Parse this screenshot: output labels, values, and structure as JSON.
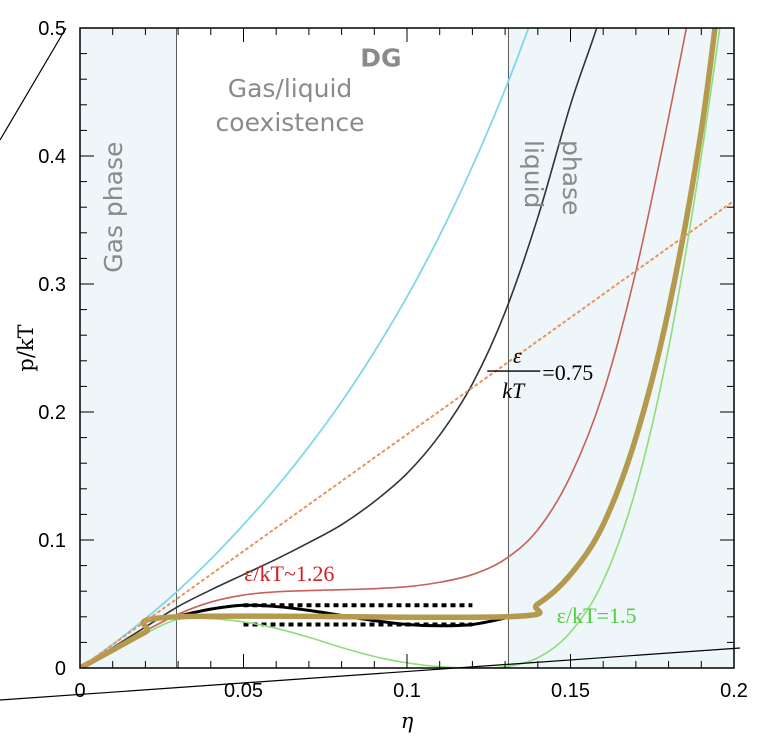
{
  "chart_data": {
    "type": "line",
    "xlabel": "η",
    "ylabel": "p/kT",
    "xlim": [
      0,
      0.2
    ],
    "ylim": [
      0,
      0.5
    ],
    "xticks": [
      {
        "value": 0,
        "label": "0"
      },
      {
        "value": 0.05,
        "label": "0.05"
      },
      {
        "value": 0.1,
        "label": "0.1"
      },
      {
        "value": 0.15,
        "label": "0.15"
      },
      {
        "value": 0.2,
        "label": "0.2"
      }
    ],
    "yticks": [
      {
        "value": 0,
        "label": "0"
      },
      {
        "value": 0.1,
        "label": "0.1"
      },
      {
        "value": 0.2,
        "label": "0.2"
      },
      {
        "value": 0.3,
        "label": "0.3"
      },
      {
        "value": 0.4,
        "label": "0.4"
      },
      {
        "value": 0.5,
        "label": "0.5"
      }
    ],
    "regions": [
      {
        "label": "Gas phase",
        "x": [
          0,
          0.0295
        ],
        "shaded": true,
        "color": "#eef6f9"
      },
      {
        "label": "Gas/liquid\ncoexistence",
        "x": [
          0.0295,
          0.131
        ],
        "shaded": false
      },
      {
        "label": "liquid\nphase",
        "x": [
          0.131,
          0.2
        ],
        "shaded": true,
        "color": "#eef6f9"
      }
    ],
    "series": [
      {
        "name": "DG",
        "color": "#7fd8e8",
        "width": 1.8,
        "x": [
          0,
          0.01,
          0.02,
          0.03,
          0.04,
          0.05,
          0.06,
          0.07,
          0.08,
          0.09,
          0.1,
          0.11,
          0.12,
          0.13,
          0.14,
          0.148
        ],
        "y": [
          0,
          0.0185,
          0.0385,
          0.0605,
          0.085,
          0.112,
          0.141,
          0.173,
          0.208,
          0.247,
          0.29,
          0.338,
          0.392,
          0.452,
          0.52,
          0.58
        ]
      },
      {
        "name": "ε/kT = 0.75",
        "color": "#333333",
        "width": 1.6,
        "x": [
          0,
          0.01,
          0.02,
          0.03,
          0.04,
          0.05,
          0.06,
          0.07,
          0.08,
          0.09,
          0.1,
          0.11,
          0.12,
          0.13,
          0.14,
          0.15,
          0.158,
          0.165
        ],
        "y": [
          0,
          0.016,
          0.032,
          0.048,
          0.061,
          0.073,
          0.085,
          0.098,
          0.112,
          0.13,
          0.152,
          0.182,
          0.222,
          0.278,
          0.352,
          0.44,
          0.5,
          0.56
        ]
      },
      {
        "name": "ε/kT~1.26",
        "color": "#c8605a",
        "width": 1.6,
        "x": [
          0,
          0.01,
          0.02,
          0.03,
          0.04,
          0.05,
          0.06,
          0.07,
          0.08,
          0.09,
          0.1,
          0.11,
          0.12,
          0.13,
          0.14,
          0.15,
          0.16,
          0.17,
          0.18,
          0.19
        ],
        "y": [
          0,
          0.0145,
          0.029,
          0.042,
          0.0515,
          0.057,
          0.0595,
          0.0605,
          0.0612,
          0.062,
          0.0635,
          0.067,
          0.073,
          0.085,
          0.108,
          0.15,
          0.215,
          0.31,
          0.43,
          0.56
        ]
      },
      {
        "name": "ε/kT=1.5",
        "color": "#8fdc7a",
        "width": 1.6,
        "x": [
          0,
          0.01,
          0.02,
          0.03,
          0.04,
          0.05,
          0.06,
          0.07,
          0.08,
          0.09,
          0.1,
          0.11,
          0.12,
          0.13,
          0.14,
          0.15,
          0.16,
          0.17,
          0.18,
          0.19,
          0.2
        ],
        "y": [
          0,
          0.0135,
          0.027,
          0.038,
          0.0385,
          0.036,
          0.031,
          0.024,
          0.016,
          0.009,
          0.004,
          0.001,
          0.0,
          0.001,
          0.008,
          0.028,
          0.068,
          0.14,
          0.25,
          0.4,
          0.58
        ]
      },
      {
        "name": "black loop",
        "color": "#000000",
        "width": 3,
        "x": [
          0.03,
          0.04,
          0.05,
          0.06,
          0.07,
          0.08,
          0.09,
          0.1,
          0.11,
          0.12,
          0.13
        ],
        "y": [
          0.0405,
          0.046,
          0.049,
          0.048,
          0.045,
          0.041,
          0.037,
          0.034,
          0.033,
          0.034,
          0.039
        ]
      },
      {
        "name": "thick gold",
        "color": "#b39a4e",
        "width": 5.5,
        "x": [
          0,
          0.01,
          0.02,
          0.03,
          0.13,
          0.14,
          0.15,
          0.16,
          0.17,
          0.18,
          0.19,
          0.197
        ],
        "y": [
          0,
          0.014,
          0.028,
          0.04,
          0.04,
          0.05,
          0.073,
          0.112,
          0.18,
          0.28,
          0.42,
          0.56
        ]
      },
      {
        "name": "orange dotted",
        "color": "#e8935a",
        "width": 2,
        "dash": "2,4",
        "x": [
          0.0,
          0.2
        ],
        "y": [
          0.0,
          0.365
        ]
      }
    ],
    "hlines": [
      {
        "y": 0.049,
        "x": [
          0.05,
          0.12
        ],
        "color": "#000000",
        "dash": "5,4",
        "width": 4
      },
      {
        "y": 0.034,
        "x": [
          0.05,
          0.12
        ],
        "color": "#000000",
        "dash": "5,4",
        "width": 4
      }
    ],
    "annotations": [
      {
        "text": "DG",
        "x": 0.092,
        "y": 0.47,
        "color": "#3bc4ea"
      },
      {
        "text": "ε/kT~1.26",
        "x": 0.064,
        "y": 0.068,
        "color": "#d12020"
      },
      {
        "text": "ε/kT=1.5",
        "x": 0.158,
        "y": 0.035,
        "color": "#55cc44"
      }
    ],
    "formula": {
      "numerator": "ε",
      "denominator": "kT",
      "rhs": "=0.75",
      "x": 0.127,
      "y": 0.232,
      "color": "#000000"
    }
  }
}
